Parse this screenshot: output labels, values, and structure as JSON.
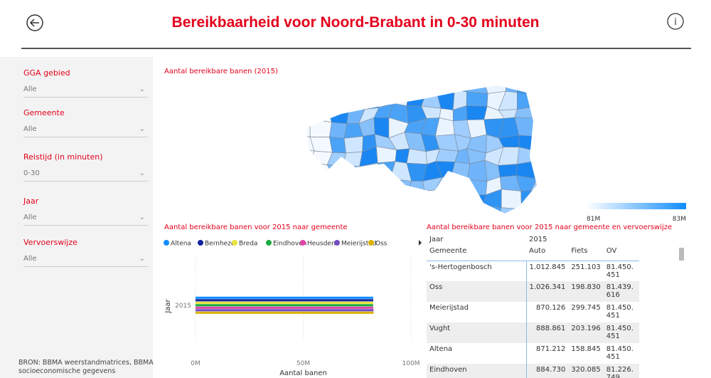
{
  "header": {
    "title": "Bereikbaarheid voor Noord-Brabant in 0-30 minuten"
  },
  "filters": [
    {
      "label": "GGA gebied",
      "value": "Alle"
    },
    {
      "label": "Gemeente",
      "value": "Alle"
    },
    {
      "label": "Reistijd (in minuten)",
      "value": "0-30"
    },
    {
      "label": "Jaar",
      "value": "Alle"
    },
    {
      "label": "Vervoerswijze",
      "value": "Alle"
    }
  ],
  "source": "BRON: BBMA weerstandmatrices, BBMA socioeconomische gegevens",
  "map": {
    "title": "Aantal bereikbare banen (2015)",
    "legend_min": "81M",
    "legend_max": "83M"
  },
  "chart_data": {
    "type": "bar",
    "orientation": "horizontal",
    "title": "Aantal bereikbare banen voor 2015 naar gemeente",
    "x_label": "Aantal banen",
    "y_label": "Jaar",
    "categories": [
      "2015"
    ],
    "series": [
      {
        "name": "Altena",
        "color": "#118dff",
        "values": [
          82.48
        ]
      },
      {
        "name": "Bernheze",
        "color": "#12239e",
        "values": [
          82.5
        ]
      },
      {
        "name": "Breda",
        "color": "#e8e33a",
        "values": [
          82.5
        ]
      },
      {
        "name": "Eindhoven",
        "color": "#1aab40",
        "values": [
          82.43
        ]
      },
      {
        "name": "Heusden",
        "color": "#e044a7",
        "values": [
          82.5
        ]
      },
      {
        "name": "Meierijstad",
        "color": "#744ec2",
        "values": [
          82.62
        ]
      },
      {
        "name": "Oss",
        "color": "#d9b300",
        "values": [
          82.66
        ]
      }
    ],
    "xlim": [
      0,
      100
    ],
    "xticks": [
      {
        "value": 0,
        "label": "0M"
      },
      {
        "value": 50,
        "label": "50M"
      },
      {
        "value": 100,
        "label": "100M"
      }
    ],
    "grid": true
  },
  "table": {
    "title": "Aantal bereikbare banen voor 2015 naar gemeente en vervoerswijze",
    "header1": [
      "Jaar",
      "2015"
    ],
    "header2": [
      "Gemeente",
      "Auto",
      "Fiets",
      "OV"
    ],
    "rows": [
      [
        "'s-Hertogenbosch",
        "1.012.845",
        "251.103",
        "81.450.451"
      ],
      [
        "Oss",
        "1.026.341",
        "198.830",
        "81.439.616"
      ],
      [
        "Meierijstad",
        "870.126",
        "299.745",
        "81.450.451"
      ],
      [
        "Vught",
        "888.861",
        "203.196",
        "81.450.451"
      ],
      [
        "Altena",
        "871.212",
        "158.845",
        "81.450.451"
      ],
      [
        "Eindhoven",
        "884.730",
        "320.085",
        "81.226.749"
      ]
    ]
  }
}
